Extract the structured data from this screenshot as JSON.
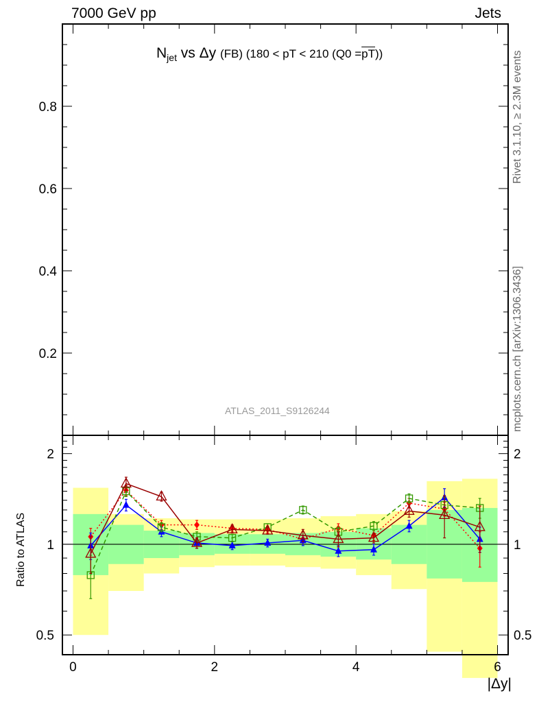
{
  "header": {
    "energy": "7000 GeV pp",
    "category": "Jets",
    "rivet_label": "Rivet 3.1.10, ≥ 2.3M events",
    "mcplots_label": "mcplots.cern.ch [arXiv:1306.3436]"
  },
  "main_title": {
    "n": "N",
    "jet": "jet",
    "vs": " vs Δy ",
    "fb": "(FB)",
    "range": " (180 < pT < 210 (Q0 =",
    "pt": "pT",
    "close": "))"
  },
  "reference_label": "ATLAS_2011_S9126244",
  "colors": {
    "band_outer": "#ffff99",
    "band_inner": "#99ff99",
    "series_red": "#ff0000",
    "series_blue": "#0000ff",
    "series_green": "#339900",
    "series_darkred": "#990000"
  },
  "chart_data": [
    {
      "type": "line",
      "panel": "main",
      "ylim": [
        0,
        1.0
      ],
      "yticks": [
        0.2,
        0.4,
        0.6,
        0.8
      ],
      "ytick_labels": [
        "0.2",
        "0.4",
        "0.6",
        "0.8"
      ],
      "series": []
    },
    {
      "type": "line",
      "panel": "ratio",
      "ylabel": "Ratio to ATLAS",
      "xlabel": "|Δy|",
      "xlim": [
        -0.15,
        6.15
      ],
      "ylim": [
        0.43,
        2.3
      ],
      "log_y": true,
      "xticks": [
        0,
        2,
        4,
        6
      ],
      "xtick_labels": [
        "0",
        "2",
        "4",
        "6"
      ],
      "yticks": [
        0.5,
        1,
        2
      ],
      "ytick_labels": [
        "0.5",
        "1",
        "2"
      ],
      "bins": [
        [
          0,
          0.5
        ],
        [
          0.5,
          1.0
        ],
        [
          1.0,
          1.5
        ],
        [
          1.5,
          2.0
        ],
        [
          2.0,
          2.5
        ],
        [
          2.5,
          3.0
        ],
        [
          3.0,
          3.5
        ],
        [
          3.5,
          4.0
        ],
        [
          4.0,
          4.5
        ],
        [
          4.5,
          5.0
        ],
        [
          5.0,
          5.5
        ],
        [
          5.5,
          6.0
        ]
      ],
      "band_outer": {
        "low": [
          0.5,
          0.7,
          0.8,
          0.84,
          0.85,
          0.85,
          0.84,
          0.83,
          0.79,
          0.71,
          0.44,
          0.36
        ],
        "high": [
          1.54,
          1.26,
          1.22,
          1.21,
          1.21,
          1.21,
          1.22,
          1.24,
          1.26,
          1.29,
          1.62,
          1.65
        ]
      },
      "band_inner": {
        "low": [
          0.79,
          0.86,
          0.9,
          0.92,
          0.93,
          0.93,
          0.92,
          0.91,
          0.89,
          0.86,
          0.77,
          0.75
        ],
        "high": [
          1.26,
          1.16,
          1.11,
          1.09,
          1.08,
          1.08,
          1.09,
          1.1,
          1.13,
          1.16,
          1.3,
          1.32
        ]
      },
      "x": [
        0.25,
        0.75,
        1.25,
        1.75,
        2.25,
        2.75,
        3.25,
        3.75,
        4.25,
        4.75,
        5.25,
        5.75
      ],
      "series": [
        {
          "marker": "diamond",
          "style": "dotted",
          "color": "#ff0000",
          "values": [
            1.06,
            1.51,
            1.16,
            1.16,
            1.13,
            1.12,
            1.04,
            1.13,
            1.07,
            1.37,
            1.31,
            0.97
          ],
          "errors": [
            0.07,
            0.06,
            0.04,
            0.04,
            0.03,
            0.03,
            0.03,
            0.04,
            0.04,
            0.05,
            0.07,
            0.13
          ]
        },
        {
          "marker": "triangle-up",
          "style": "solid",
          "color": "#0000ff",
          "values": [
            0.99,
            1.35,
            1.1,
            1.01,
            0.99,
            1.01,
            1.03,
            0.95,
            0.96,
            1.15,
            1.43,
            1.04
          ],
          "errors": [
            0.1,
            0.06,
            0.04,
            0.04,
            0.03,
            0.03,
            0.04,
            0.04,
            0.04,
            0.05,
            0.1,
            0.1
          ]
        },
        {
          "marker": "square-open",
          "style": "dashed",
          "color": "#339900",
          "values": [
            0.79,
            1.5,
            1.14,
            1.06,
            1.05,
            1.14,
            1.3,
            1.1,
            1.15,
            1.42,
            1.35,
            1.32
          ],
          "errors": [
            0.13,
            0.06,
            0.04,
            0.04,
            0.03,
            0.03,
            0.04,
            0.04,
            0.04,
            0.05,
            0.08,
            0.1
          ]
        },
        {
          "marker": "triangle-open",
          "style": "solid",
          "color": "#990000",
          "values": [
            0.93,
            1.59,
            1.44,
            1.01,
            1.12,
            1.11,
            1.07,
            1.04,
            1.05,
            1.29,
            1.25,
            1.14
          ],
          "errors": [
            0.13,
            0.08,
            0.05,
            0.04,
            0.03,
            0.03,
            0.05,
            0.06,
            0.04,
            0.06,
            0.2,
            0.2
          ]
        }
      ]
    }
  ]
}
